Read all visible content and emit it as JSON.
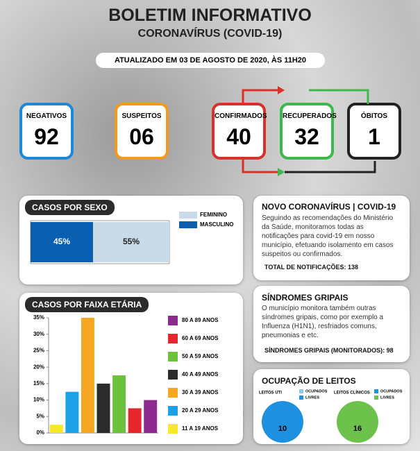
{
  "header": {
    "title": "BOLETIM INFORMATIVO",
    "subtitle": "CORONAVÍRUS (COVID-19)",
    "updated": "ATUALIZADO EM 03 DE AGOSTO DE 2020, ÀS 11H20"
  },
  "stats": [
    {
      "label": "NEGATIVOS",
      "value": "92",
      "color": "#1e88d8"
    },
    {
      "label": "SUSPEITOS",
      "value": "06",
      "color": "#f39a1e"
    },
    {
      "label": "CONFIRMADOS",
      "value": "40",
      "color": "#d9302a"
    },
    {
      "label": "RECUPERADOS",
      "value": "32",
      "color": "#3db84a"
    },
    {
      "label": "ÓBITOS",
      "value": "1",
      "color": "#222222"
    }
  ],
  "sex_chart": {
    "type": "bar",
    "title": "CASOS POR SEXO",
    "xlim": [
      0,
      100
    ],
    "series": [
      {
        "name": "FEMININO",
        "color": "#c9dbe8",
        "values": [
          55
        ],
        "value_labels": [
          "55%"
        ]
      },
      {
        "name": "MASCULINO",
        "color": "#0a5fb0",
        "values": [
          45
        ],
        "value_labels": [
          "45%"
        ]
      }
    ]
  },
  "age_chart": {
    "type": "bar",
    "title": "CASOS POR FAIXA ETÁRIA",
    "categories": [
      "11 A 19 ANOS",
      "20 A 29 ANOS",
      "30 A 39 ANOS",
      "40 A 49 ANOS",
      "50 A 59 ANOS",
      "60 A 69 ANOS",
      "80 A 89 ANOS"
    ],
    "values": [
      2.5,
      12.5,
      35,
      15,
      17.5,
      7.5,
      10
    ],
    "colors": [
      "#f5e92a",
      "#1ea0e6",
      "#f5a623",
      "#2b2b2b",
      "#6cc23a",
      "#e5262b",
      "#8e2a8e"
    ],
    "ylim": [
      0,
      35
    ],
    "yticks": [
      {
        "value": 0,
        "label": "0%"
      },
      {
        "value": 5,
        "label": "5%"
      },
      {
        "value": 10,
        "label": "10%"
      },
      {
        "value": 15,
        "label": "15%"
      },
      {
        "value": 20,
        "label": "20%"
      },
      {
        "value": 25,
        "label": "25%"
      },
      {
        "value": 30,
        "label": "30%"
      },
      {
        "value": 35,
        "label": "35%"
      }
    ]
  },
  "news": {
    "title": "NOVO CORONAVÍRUS | COVID-19",
    "body": "Seguindo as recomendações do Ministério da Saúde, monitoramos todas as notificações para covid-19 em nosso município, efetuando isolamento em casos suspeitos ou confirmados.",
    "total": "TOTAL DE NOTIFICAÇÕES: 138"
  },
  "syndromes": {
    "title": "SÍNDROMES GRIPAIS",
    "body": "O município monitora também outras síndromes gripais, como por exemplo a Influenza (H1N1), resfriados comuns, pneumonias e etc.",
    "total": "SÍNDROMES GRIPAIS (MONITORADOS): 98"
  },
  "beds": {
    "title": "OCUPAÇÃO DE LEITOS",
    "charts": [
      {
        "type": "pie",
        "label": "LEITOS UTI",
        "legend": [
          {
            "name": "OCUPADOS",
            "color": "#8ec9e8"
          },
          {
            "name": "LIVRES",
            "color": "#1e90e0"
          }
        ],
        "value": 10,
        "color": "#1e90e0"
      },
      {
        "type": "pie",
        "label": "LEITOS CLÍNICOS",
        "legend": [
          {
            "name": "OCUPADOS",
            "color": "#1e90e0"
          },
          {
            "name": "LIVRES",
            "color": "#6cc24a"
          }
        ],
        "value": 16,
        "color": "#6cc24a"
      }
    ]
  }
}
